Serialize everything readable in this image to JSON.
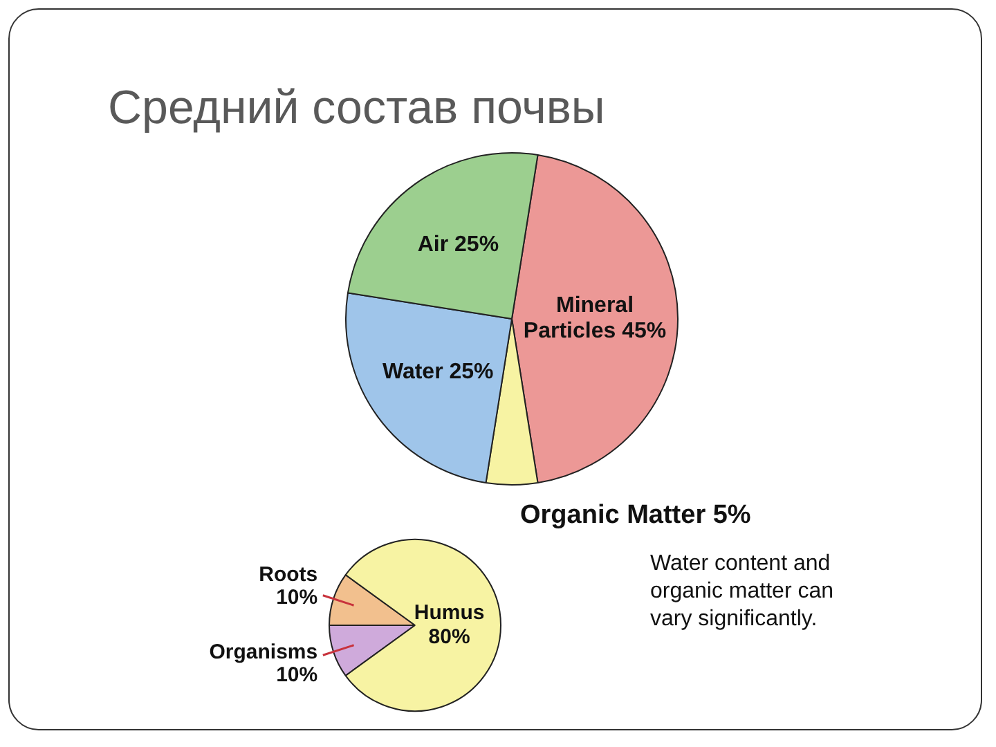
{
  "chart_data": [
    {
      "type": "pie",
      "title": "Средний состав почвы",
      "categories": [
        "Mineral Particles",
        "Organic Matter",
        "Water",
        "Air"
      ],
      "values": [
        45,
        5,
        25,
        25
      ],
      "value_labels": [
        "45%",
        "5%",
        "25%",
        "25%"
      ],
      "colors": [
        "#ec9896",
        "#f7f3a3",
        "#9fc5ea",
        "#9ccf8f"
      ],
      "annotations": [
        "Water content and organic matter can vary significantly."
      ]
    },
    {
      "type": "pie",
      "categories": [
        "Organisms",
        "Roots",
        "Humus"
      ],
      "values": [
        10,
        10,
        80
      ],
      "value_labels": [
        "10%",
        "10%",
        "80%"
      ],
      "colors": [
        "#cfaadb",
        "#f2c08e",
        "#f7f3a3"
      ]
    }
  ]
}
